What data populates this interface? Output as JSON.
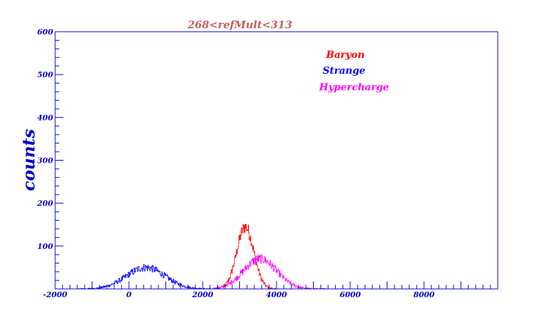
{
  "chart_data": {
    "type": "line",
    "title": "268<refMult<313",
    "xlabel": "",
    "ylabel": "counts",
    "xlim": [
      -2000,
      10000
    ],
    "ylim": [
      0,
      600
    ],
    "x_ticks": [
      -2000,
      0,
      2000,
      4000,
      6000,
      8000
    ],
    "y_ticks": [
      100,
      200,
      300,
      400,
      500,
      600
    ],
    "grid": false,
    "legend_position": "top-right",
    "series": [
      {
        "name": "Baryon",
        "color": "#ff0000",
        "mean": 3150,
        "sigma": 230,
        "peak": 145,
        "range": [
          2550,
          4000
        ]
      },
      {
        "name": "Strange",
        "color": "#0000ff",
        "mean": 450,
        "sigma": 520,
        "peak": 50,
        "range": [
          -1400,
          2500
        ]
      },
      {
        "name": "Hypercharge",
        "color": "#ff00ff",
        "mean": 3550,
        "sigma": 450,
        "peak": 70,
        "range": [
          2300,
          5400
        ]
      }
    ]
  },
  "colors": {
    "axis": "#0000cc",
    "title": "#c06060"
  }
}
